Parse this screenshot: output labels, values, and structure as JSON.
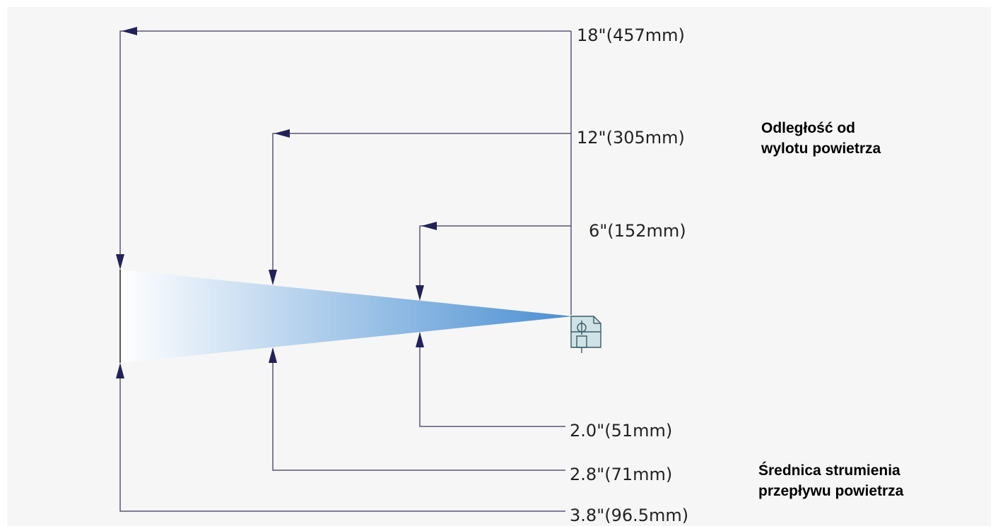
{
  "distances": [
    {
      "label": "18\"(457mm)"
    },
    {
      "label": "12\"(305mm)"
    },
    {
      "label": "6\"(152mm)"
    }
  ],
  "diameters": [
    {
      "label": "2.0\"(51mm)"
    },
    {
      "label": "2.8\"(71mm)"
    },
    {
      "label": "3.8\"(96.5mm)"
    }
  ],
  "caption_distance": {
    "line1": "Odległość od",
    "line2": "wylotu powietrza"
  },
  "caption_diameter": {
    "line1": "Średnica strumienia",
    "line2": "przepływu powietrza"
  },
  "colors": {
    "line": "#5a5577",
    "arrow": "#23215a",
    "jet_start": "#ffffff",
    "jet_end": "#4a8fd2",
    "nozzle": "#3a5a66"
  },
  "icons": {
    "nozzle": "air-nozzle-icon"
  }
}
